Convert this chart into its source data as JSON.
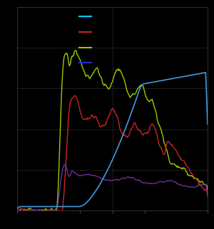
{
  "background_color": "#000000",
  "axes_bg_color": "#000000",
  "line_colors": {
    "blue": "#4499dd",
    "red": "#cc2222",
    "green": "#99cc00",
    "purple": "#7733aa"
  },
  "legend_colors": {
    "cyan": "#00ccff",
    "red": "#cc2222",
    "green": "#99cc00",
    "blue_dark": "#2233cc"
  },
  "figsize": [
    3.0,
    3.22
  ],
  "dpi": 100
}
